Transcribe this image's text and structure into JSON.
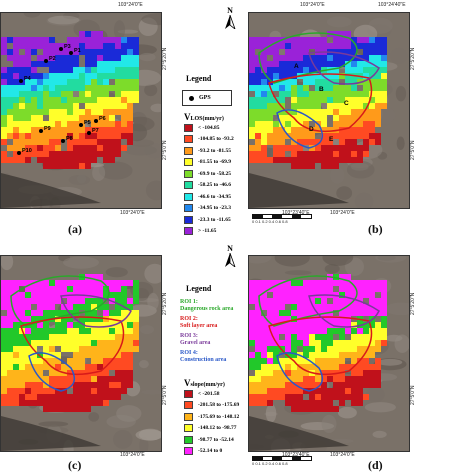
{
  "panels": [
    {
      "id": "a",
      "label": "(a)",
      "mode": "vlos",
      "gps_labels": [
        "P1",
        "P2",
        "P3",
        "P4",
        "P5",
        "P6",
        "P7",
        "P8",
        "P9",
        "P10"
      ]
    },
    {
      "id": "b",
      "label": "(b)",
      "mode": "vlos_roi",
      "site_labels": [
        "A",
        "B",
        "C",
        "D",
        "E"
      ]
    },
    {
      "id": "c",
      "label": "(c)",
      "mode": "vslope_roi"
    },
    {
      "id": "d",
      "label": "(d)",
      "mode": "vslope_full"
    }
  ],
  "coords": {
    "top": "103°24'0\"E",
    "top_right": "103°24'40\"E",
    "bottom": "103°23'40\"E",
    "bottom_right": "103°24'0\"E",
    "lat_upper": "27°5'20\"N",
    "lat_lower": "27°5'0\"N"
  },
  "north": {
    "letter": "N"
  },
  "scale": {
    "ticks": "0  0.1  0.2   0.4  0.6  0.8"
  },
  "legend_top": {
    "title": "Legend",
    "gps": "GPS",
    "vlos_title": "V",
    "vlos_sub": "LOS",
    "vlos_unit": "(mm/yr)",
    "classes": [
      {
        "label": "< -104.85",
        "color": "#c0111b"
      },
      {
        "label": "-104.85 to -93.2",
        "color": "#ff4a22"
      },
      {
        "label": "-93.2 to -81.55",
        "color": "#ff9a1a"
      },
      {
        "label": "-81.55 to -69.9",
        "color": "#ffff2a"
      },
      {
        "label": "-69.9 to -58.25",
        "color": "#7ddc2a"
      },
      {
        "label": "-58.25 to -46.6",
        "color": "#22dca0"
      },
      {
        "label": "-46.6 to -34.95",
        "color": "#22e8e8"
      },
      {
        "label": "-34.95 to -23.3",
        "color": "#2288ee"
      },
      {
        "label": "-23.3 to -11.65",
        "color": "#1a2ad8"
      },
      {
        "label": "> -11.65",
        "color": "#9a22d8"
      }
    ]
  },
  "legend_bottom": {
    "title": "Legend",
    "rois": [
      {
        "name": "ROI 1:",
        "desc": "Dangerous rock area",
        "color": "#2aa82a"
      },
      {
        "name": "ROI 2:",
        "desc": "Soft layer area",
        "color": "#d81a1a"
      },
      {
        "name": "ROI 3:",
        "desc": "Gravel area",
        "color": "#7a3a9a"
      },
      {
        "name": "ROI 4:",
        "desc": "Construction area",
        "color": "#2a58c8"
      }
    ],
    "vslope_title": "V",
    "vslope_sub": "slope",
    "vslope_unit": "(mm/yr)",
    "classes": [
      {
        "label": "< -201.58",
        "color": "#c0111b"
      },
      {
        "label": "-201.58 to -175.69",
        "color": "#ff4a22"
      },
      {
        "label": "-175.69 to -148.12",
        "color": "#ffb41a"
      },
      {
        "label": "-148.12 to -98.77",
        "color": "#ffff2a"
      },
      {
        "label": "-98.77 to -52.14",
        "color": "#22c82a"
      },
      {
        "label": "-52.14 to 0",
        "color": "#ff22ff"
      }
    ]
  }
}
